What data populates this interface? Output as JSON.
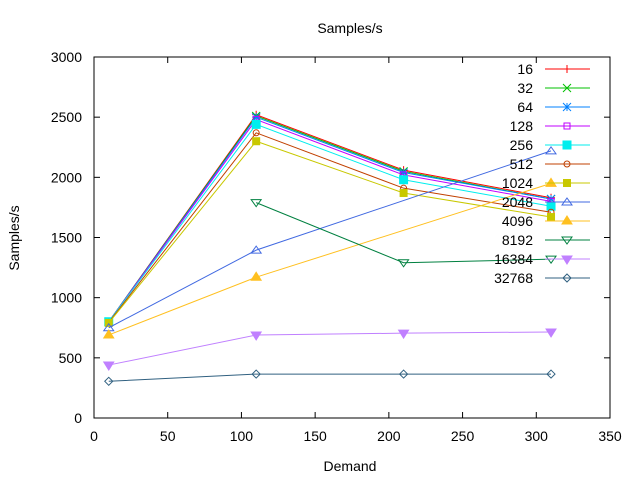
{
  "chart_data": {
    "type": "line",
    "title": "Samples/s",
    "xlabel": "Demand",
    "ylabel": "Samples/s",
    "xlim": [
      0,
      350
    ],
    "ylim": [
      0,
      3000
    ],
    "xticks": [
      0,
      50,
      100,
      150,
      200,
      250,
      300,
      350
    ],
    "yticks": [
      0,
      500,
      1000,
      1500,
      2000,
      2500,
      3000
    ],
    "grid": false,
    "legend_position": "top-right",
    "x": [
      10,
      110,
      210,
      310
    ],
    "series": [
      {
        "name": "16",
        "color": "#ff0000",
        "marker": "plus",
        "values": [
          800,
          2520,
          2060,
          1830
        ]
      },
      {
        "name": "32",
        "color": "#00c000",
        "marker": "cross",
        "values": [
          800,
          2510,
          2050,
          1820
        ]
      },
      {
        "name": "64",
        "color": "#0080ff",
        "marker": "star",
        "values": [
          800,
          2500,
          2040,
          1820
        ]
      },
      {
        "name": "128",
        "color": "#c000ff",
        "marker": "open-square",
        "values": [
          800,
          2480,
          2020,
          1800
        ]
      },
      {
        "name": "256",
        "color": "#00eeee",
        "marker": "filled-square",
        "values": [
          800,
          2440,
          1980,
          1760
        ]
      },
      {
        "name": "512",
        "color": "#c04000",
        "marker": "open-circle",
        "values": [
          795,
          2370,
          1910,
          1710
        ]
      },
      {
        "name": "1024",
        "color": "#c8c800",
        "marker": "filled-circle",
        "values": [
          790,
          2300,
          1870,
          1670
        ]
      },
      {
        "name": "2048",
        "color": "#4169e1",
        "marker": "open-triangle",
        "values": [
          750,
          1395,
          null,
          2220
        ]
      },
      {
        "name": "4096",
        "color": "#ffc020",
        "marker": "filled-triangle",
        "values": [
          690,
          1170,
          null,
          1950
        ]
      },
      {
        "name": "8192",
        "color": "#008040",
        "marker": "open-inverted-triangle",
        "values": [
          null,
          1790,
          1290,
          1320
        ]
      },
      {
        "name": "16384",
        "color": "#c080ff",
        "marker": "filled-inverted-triangle",
        "values": [
          440,
          690,
          705,
          715
        ]
      },
      {
        "name": "32768",
        "color": "#306080",
        "marker": "open-diamond",
        "values": [
          305,
          365,
          365,
          365
        ]
      }
    ]
  }
}
